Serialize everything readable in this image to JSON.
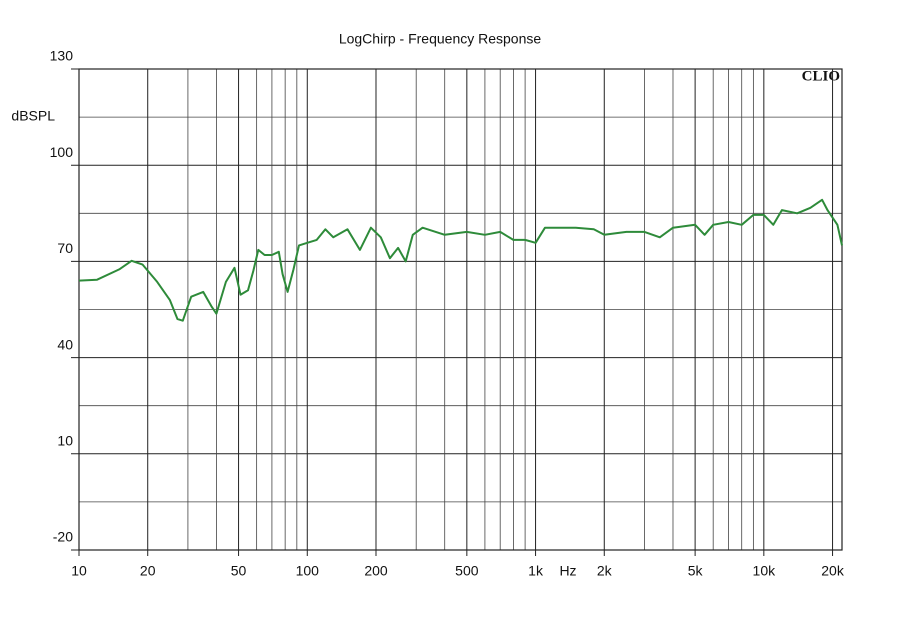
{
  "chart_data": {
    "type": "line",
    "title": "LogChirp - Frequency Response",
    "watermark": "CLIO",
    "ylabel": "dBSPL",
    "xlabel": "Hz",
    "xscale": "log",
    "grid": true,
    "xlim": [
      10,
      22000
    ],
    "ylim": [
      -20,
      130
    ],
    "xticks": [
      10,
      20,
      50,
      100,
      200,
      500,
      {
        "value": 1000,
        "label": "1k"
      },
      {
        "value": 2000,
        "label": "2k"
      },
      {
        "value": 5000,
        "label": "5k"
      },
      {
        "value": 10000,
        "label": "10k"
      },
      {
        "value": 20000,
        "label": "20k"
      }
    ],
    "xminor": [
      30,
      40,
      60,
      70,
      80,
      90,
      300,
      400,
      600,
      700,
      800,
      900,
      3000,
      4000,
      6000,
      7000,
      8000,
      9000
    ],
    "yticks": [
      -20,
      10,
      40,
      70,
      100,
      130
    ],
    "yminor": [
      -5,
      25,
      55,
      85,
      115
    ],
    "x": [
      10,
      12,
      15,
      17,
      19,
      22,
      25,
      27,
      28.5,
      31,
      35,
      38,
      40,
      44,
      48,
      51,
      55,
      58,
      61,
      65,
      70,
      75,
      78,
      82,
      87,
      92,
      100,
      110,
      120,
      130,
      150,
      170,
      190,
      210,
      230,
      250,
      270,
      290,
      320,
      400,
      500,
      600,
      700,
      800,
      900,
      1000,
      1100,
      1300,
      1500,
      1800,
      2000,
      2500,
      3000,
      3500,
      4000,
      5000,
      5500,
      6000,
      7000,
      8000,
      9000,
      10000,
      11000,
      12000,
      14000,
      16000,
      18000,
      19000,
      21000,
      22000
    ],
    "series": [
      {
        "name": "Frequency Response",
        "color": "#2e8b3a",
        "values": [
          64,
          64.3,
          67.5,
          70.2,
          69,
          63.6,
          58,
          52,
          51.5,
          59,
          60.5,
          56,
          53.7,
          63.6,
          68,
          59.6,
          61,
          67,
          73.6,
          72,
          72,
          73,
          66,
          60.5,
          67.5,
          75,
          75.8,
          76.7,
          80,
          77.5,
          80,
          73.6,
          80.5,
          77.5,
          71,
          74.2,
          70,
          78.3,
          80.5,
          78.3,
          79.2,
          78.3,
          79.2,
          76.7,
          76.7,
          75.8,
          80.5,
          80.5,
          80.5,
          80,
          78.3,
          79.2,
          79.2,
          77.5,
          80.5,
          81.4,
          78.3,
          81.4,
          82.3,
          81.4,
          84.5,
          84.5,
          81.4,
          86,
          85,
          86.7,
          89.2,
          86,
          81.4,
          75
        ]
      }
    ]
  }
}
